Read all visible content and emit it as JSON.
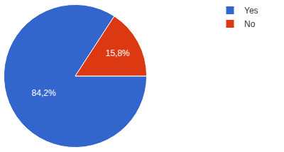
{
  "chart_data": {
    "type": "pie",
    "categories": [
      "Yes",
      "No"
    ],
    "values": [
      84.2,
      15.8
    ],
    "value_labels": [
      "84,2%",
      "15,8%"
    ],
    "colors": [
      "#3366cc",
      "#dc3912"
    ],
    "data_labels": true,
    "legend": "top-right"
  }
}
